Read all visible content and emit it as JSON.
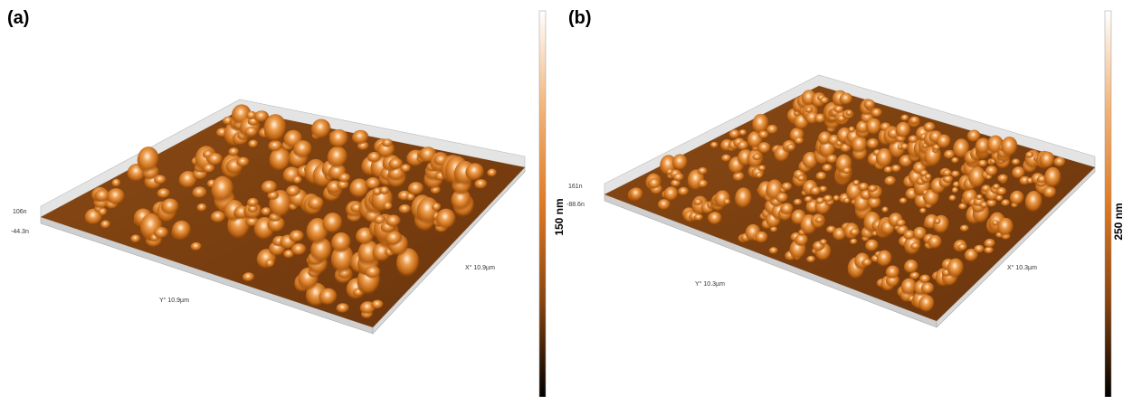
{
  "panels": [
    {
      "label": "(a)",
      "z_max": "106n",
      "z_min": "-44.3n",
      "x_axis": "X° 10.9µm",
      "y_axis": "Y° 10.9µm",
      "scale": "150 nm"
    },
    {
      "label": "(b)",
      "z_max": "161n",
      "z_min": "-88.6n",
      "x_axis": "X° 10.3µm",
      "y_axis": "Y° 10.3µm",
      "scale": "250 nm"
    }
  ]
}
